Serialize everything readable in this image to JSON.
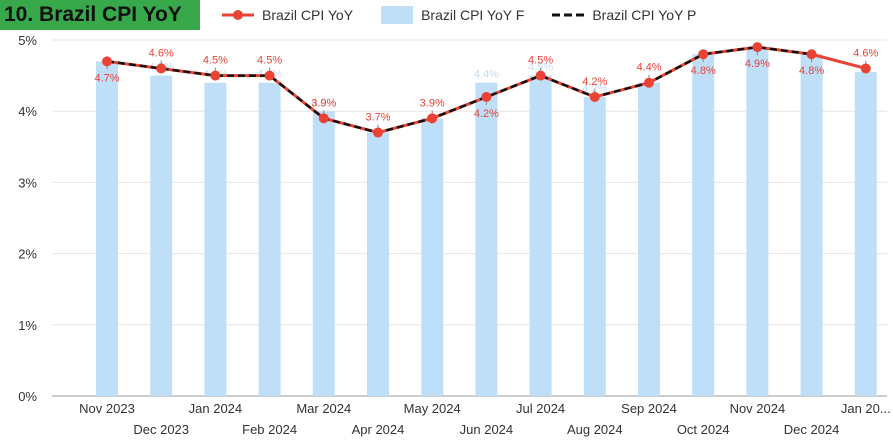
{
  "header": {
    "title": "10. Brazil CPI YoY"
  },
  "legend": [
    {
      "label": "Brazil CPI YoY",
      "style": "line-marker",
      "color": "#ea4335"
    },
    {
      "label": "Brazil CPI YoY F",
      "style": "bar",
      "color": "#bfdff9"
    },
    {
      "label": "Brazil CPI YoY P",
      "style": "dashed",
      "color": "#111111"
    }
  ],
  "colors": {
    "actual": "#ea4335",
    "forecast_bar": "#bfdff9",
    "projection": "#111111",
    "forecast_label": "#c5dcef",
    "grid": "#e6e6e6"
  },
  "chart_data": {
    "type": "bar+line",
    "title": "10. Brazil CPI YoY",
    "categories": [
      "Nov 2023",
      "Dec 2023",
      "Jan 2024",
      "Feb 2024",
      "Mar 2024",
      "Apr 2024",
      "May 2024",
      "Jun 2024",
      "Jul 2024",
      "Aug 2024",
      "Sep 2024",
      "Oct 2024",
      "Nov 2024",
      "Dec 2024",
      "Jan 20..."
    ],
    "ylim": [
      0,
      5
    ],
    "y_ticks": [
      "0%",
      "1%",
      "2%",
      "3%",
      "4%",
      "5%"
    ],
    "grid": true,
    "legend_position": "top",
    "series": [
      {
        "name": "Brazil CPI YoY",
        "type": "line",
        "values": [
          4.7,
          4.6,
          4.5,
          4.5,
          3.9,
          3.7,
          3.9,
          4.2,
          4.5,
          4.2,
          4.4,
          4.8,
          4.9,
          4.8,
          4.6
        ],
        "labels": [
          "4.7%",
          "4.6%",
          "4.5%",
          "4.5%",
          "3.9%",
          "3.7%",
          "3.9%",
          "4.2%",
          "4.5%",
          "4.2%",
          "4.4%",
          "4.8%",
          "4.9%",
          "4.8%",
          "4.6%"
        ],
        "label_pos": [
          "below",
          "above",
          "above",
          "above",
          "above",
          "above",
          "above",
          "below",
          "above",
          "above",
          "above",
          "below",
          "below",
          "below",
          "above"
        ]
      },
      {
        "name": "Brazil CPI YoY F",
        "type": "bar",
        "values": [
          4.7,
          4.5,
          4.4,
          4.4,
          4.0,
          3.7,
          3.9,
          4.4,
          4.5,
          4.2,
          4.4,
          4.8,
          4.9,
          4.8,
          4.55
        ],
        "labels": [
          "",
          "4.5%",
          "4.4%",
          "4.4%",
          "4.0%",
          "",
          "",
          "4.4%",
          "4.5%",
          "4.2%",
          "",
          "",
          "",
          "",
          ""
        ]
      },
      {
        "name": "Brazil CPI YoY P",
        "type": "dashed-line",
        "values": [
          4.7,
          4.6,
          4.5,
          4.5,
          3.9,
          3.7,
          3.9,
          4.2,
          4.5,
          4.2,
          4.4,
          4.8,
          4.9,
          4.8,
          null
        ]
      }
    ]
  }
}
